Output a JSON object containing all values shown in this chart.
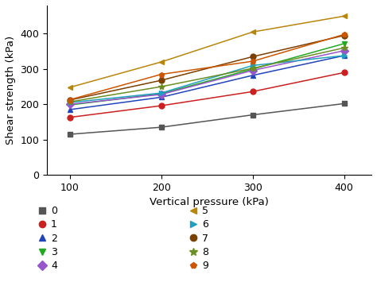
{
  "x": [
    100,
    200,
    300,
    400
  ],
  "series": [
    {
      "label": "0",
      "color": "#555555",
      "marker": "s",
      "values": [
        115,
        135,
        170,
        202
      ]
    },
    {
      "label": "1",
      "color": "#cc2020",
      "marker": "o",
      "values": [
        163,
        196,
        236,
        290
      ]
    },
    {
      "label": "2",
      "color": "#2244bb",
      "marker": "^",
      "values": [
        185,
        220,
        282,
        338
      ]
    },
    {
      "label": "3",
      "color": "#22aa22",
      "marker": "v",
      "values": [
        198,
        230,
        300,
        372
      ]
    },
    {
      "label": "4",
      "color": "#9955cc",
      "marker": "D",
      "values": [
        200,
        228,
        296,
        352
      ]
    },
    {
      "label": "5",
      "color": "#b8860b",
      "marker": "<",
      "values": [
        248,
        320,
        405,
        450
      ]
    },
    {
      "label": "6",
      "color": "#20a0c0",
      "marker": ">",
      "values": [
        205,
        232,
        310,
        338
      ]
    },
    {
      "label": "7",
      "color": "#7b3f00",
      "marker": "o",
      "values": [
        212,
        268,
        335,
        395
      ]
    },
    {
      "label": "8",
      "color": "#6b8e23",
      "marker": "*",
      "values": [
        207,
        250,
        302,
        360
      ]
    },
    {
      "label": "9",
      "color": "#cc5500",
      "marker": "p",
      "values": [
        213,
        285,
        322,
        398
      ]
    }
  ],
  "xlabel": "Vertical pressure (kPa)",
  "ylabel": "Shear strength (kPa)",
  "xlim": [
    75,
    430
  ],
  "ylim": [
    0,
    480
  ],
  "xticks": [
    100,
    200,
    300,
    400
  ],
  "yticks": [
    0,
    100,
    200,
    300,
    400
  ],
  "legend_col1": [
    "0",
    "1",
    "2",
    "3",
    "4"
  ],
  "legend_col2": [
    "5",
    "6",
    "7",
    "8",
    "9"
  ]
}
